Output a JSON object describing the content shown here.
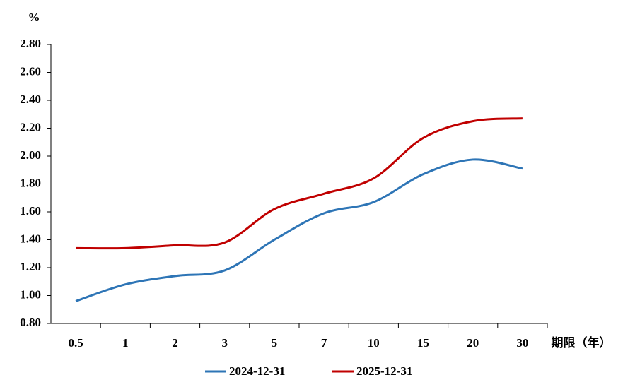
{
  "chart_data": {
    "type": "line",
    "y_unit": "%",
    "x_label": "期限（年）",
    "categories": [
      "0.5",
      "1",
      "2",
      "3",
      "5",
      "7",
      "10",
      "15",
      "20",
      "30"
    ],
    "series": [
      {
        "name": "2024-12-31",
        "color": "#2e75b6",
        "values": [
          0.96,
          1.08,
          1.14,
          1.18,
          1.4,
          1.59,
          1.67,
          1.87,
          1.975,
          1.91
        ]
      },
      {
        "name": "2025-12-31",
        "color": "#c00000",
        "values": [
          1.34,
          1.34,
          1.36,
          1.38,
          1.62,
          1.73,
          1.84,
          2.13,
          2.25,
          2.27
        ]
      }
    ],
    "ylim": [
      0.8,
      2.8
    ],
    "yticks": [
      {
        "value": 0.8,
        "label": "0.80"
      },
      {
        "value": 1.0,
        "label": "1.00"
      },
      {
        "value": 1.2,
        "label": "1.20"
      },
      {
        "value": 1.4,
        "label": "1.40"
      },
      {
        "value": 1.6,
        "label": "1.60"
      },
      {
        "value": 1.8,
        "label": "1.80"
      },
      {
        "value": 2.0,
        "label": "2.00"
      },
      {
        "value": 2.2,
        "label": "2.20"
      },
      {
        "value": 2.4,
        "label": "2.40"
      },
      {
        "value": 2.6,
        "label": "2.60"
      },
      {
        "value": 2.8,
        "label": "2.80"
      }
    ],
    "grid": false,
    "legend": "bottom"
  }
}
